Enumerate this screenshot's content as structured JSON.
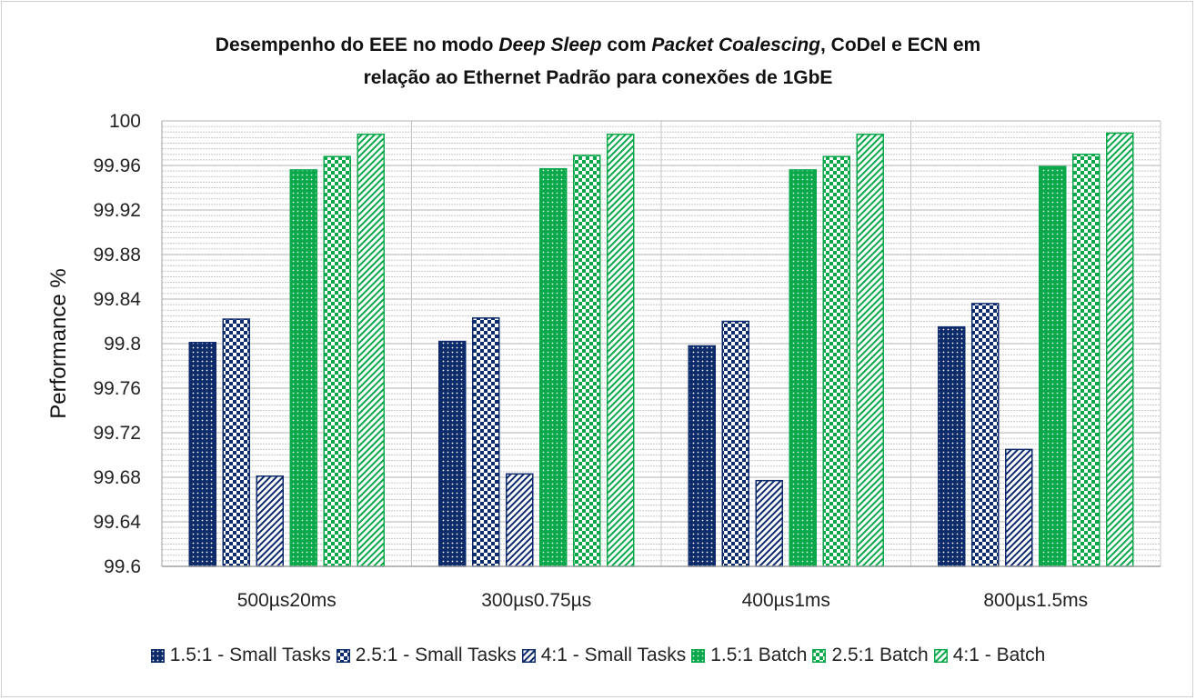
{
  "chart_data": {
    "type": "bar",
    "title_line1_parts": [
      {
        "text": "Desempenho do EEE no modo ",
        "italic": false
      },
      {
        "text": "Deep Sleep",
        "italic": true
      },
      {
        "text": " com ",
        "italic": false
      },
      {
        "text": "Packet Coalescing",
        "italic": true
      },
      {
        "text": ", CoDel e ECN em",
        "italic": false
      }
    ],
    "title_line2": "relação ao Ethernet Padrão para conexões de 1GbE",
    "ylabel": "Performance %",
    "ylim": [
      99.6,
      100
    ],
    "yticks": [
      "99.6",
      "99.64",
      "99.68",
      "99.72",
      "99.76",
      "99.8",
      "99.84",
      "99.88",
      "99.92",
      "99.96",
      "100"
    ],
    "minor_grid": true,
    "legend_position": "bottom",
    "categories": [
      "500µs20ms",
      "300µs0.75µs",
      "400µs1ms",
      "800µs1.5ms"
    ],
    "series": [
      {
        "name": "1.5:1 - Small Tasks",
        "color": "#0d2a6b",
        "pattern": "dots-dark",
        "values": [
          99.801,
          99.802,
          99.798,
          99.815
        ]
      },
      {
        "name": "2.5:1 - Small Tasks",
        "color": "#0d2a6b",
        "pattern": "checker-dark",
        "values": [
          99.822,
          99.823,
          99.82,
          99.836
        ]
      },
      {
        "name": "4:1 - Small Tasks",
        "color": "#0d2a6b",
        "pattern": "diag-dark",
        "values": [
          99.681,
          99.683,
          99.677,
          99.705
        ]
      },
      {
        "name": "1.5:1 Batch",
        "color": "#0aa84a",
        "pattern": "dots-green",
        "values": [
          99.956,
          99.957,
          99.956,
          99.959
        ]
      },
      {
        "name": "2.5:1 Batch",
        "color": "#0aa84a",
        "pattern": "checker-green",
        "values": [
          99.968,
          99.969,
          99.968,
          99.97
        ]
      },
      {
        "name": "4:1 - Batch",
        "color": "#0aa84a",
        "pattern": "diag-green",
        "values": [
          99.988,
          99.988,
          99.988,
          99.989
        ]
      }
    ]
  }
}
